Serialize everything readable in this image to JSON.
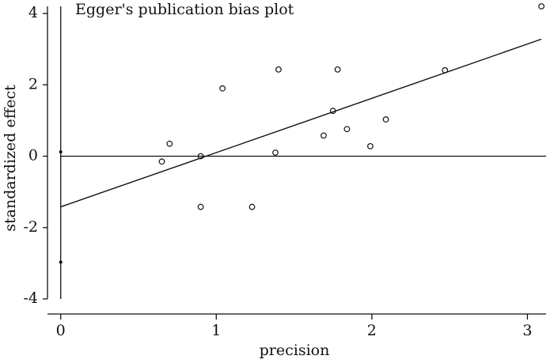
{
  "chart_data": {
    "type": "scatter",
    "title": "Egger's publication bias plot",
    "xlabel": "precision",
    "ylabel": "standardized effect",
    "x": [
      0.65,
      0.7,
      0.9,
      0.9,
      1.04,
      1.23,
      1.38,
      1.4,
      1.69,
      1.75,
      1.78,
      1.84,
      1.99,
      2.09,
      2.47,
      3.09
    ],
    "series": [
      {
        "values": [
          -0.15,
          0.35,
          0.0,
          -1.42,
          1.9,
          -1.42,
          0.1,
          2.43,
          0.58,
          1.27,
          2.43,
          0.76,
          0.28,
          1.03,
          2.41,
          4.2
        ],
        "color": "#111111"
      }
    ],
    "fit": {
      "x": [
        0,
        3.09
      ],
      "values": [
        -1.42,
        3.28
      ]
    },
    "intercept": {
      "x": [
        0,
        0
      ],
      "values": [
        0.12,
        -2.97
      ]
    },
    "hline": 0,
    "xlim": [
      -0.085,
      3.12
    ],
    "ylim": [
      -4,
      4.2
    ],
    "xticks": [
      0,
      1,
      2,
      3
    ],
    "yticks": [
      -4,
      -2,
      0,
      2,
      4
    ]
  }
}
